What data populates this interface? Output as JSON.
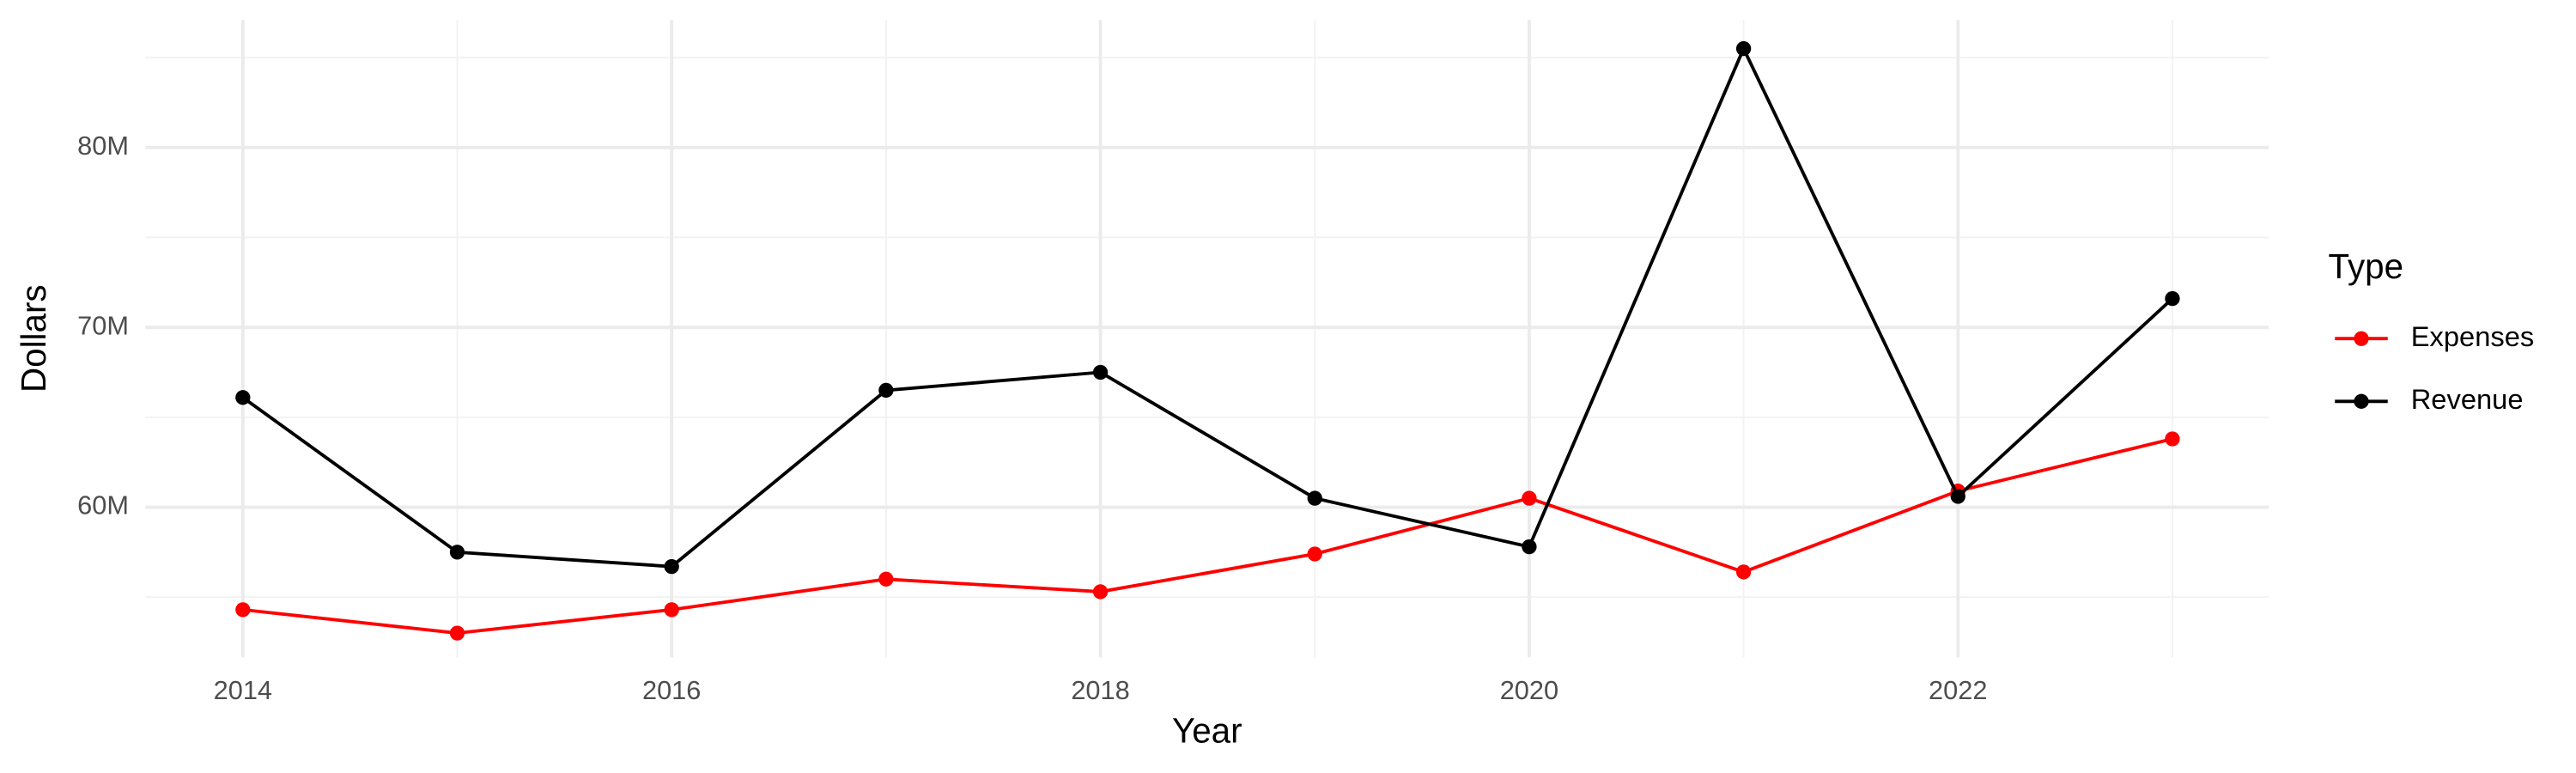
{
  "chart_data": {
    "type": "line",
    "x_label": "Year",
    "y_label": "Dollars",
    "legend_title": "Type",
    "legend_position": "right",
    "grid": true,
    "x": [
      2014,
      2015,
      2016,
      2017,
      2018,
      2019,
      2020,
      2021,
      2022,
      2023
    ],
    "series": [
      {
        "name": "Expenses",
        "color": "#ff0000",
        "values": [
          54300000,
          53000000,
          54300000,
          56000000,
          55300000,
          57400000,
          60500000,
          56400000,
          60900000,
          63800000
        ]
      },
      {
        "name": "Revenue",
        "color": "#000000",
        "values": [
          66100000,
          57500000,
          56700000,
          66500000,
          67500000,
          60500000,
          57800000,
          85500000,
          60600000,
          71600000
        ]
      }
    ],
    "xlim": [
      2013.545,
      2023.45
    ],
    "xticks": [
      2014,
      2016,
      2018,
      2020,
      2022
    ],
    "xminor": [
      2015,
      2017,
      2019,
      2021,
      2023
    ],
    "ylim": [
      51650000,
      87100000
    ],
    "yticks": [
      {
        "value": 60000000,
        "label": "60M"
      },
      {
        "value": 70000000,
        "label": "70M"
      },
      {
        "value": 80000000,
        "label": "80M"
      }
    ],
    "yminor": [
      55000000,
      65000000,
      75000000,
      85000000
    ]
  }
}
